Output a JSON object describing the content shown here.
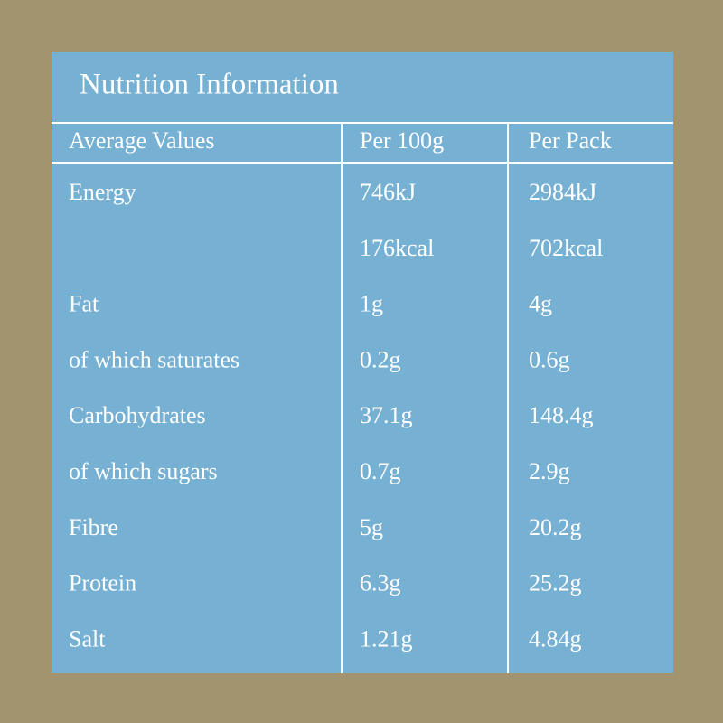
{
  "title": "Nutrition Information",
  "table": {
    "header": [
      "Average Values",
      "Per 100g",
      "Per Pack"
    ],
    "rows": [
      {
        "label": "Energy",
        "per_100g": [
          "746kJ",
          "176kcal"
        ],
        "per_pack": [
          "2984kJ",
          "702kcal"
        ]
      },
      {
        "label": "Fat",
        "per_100g": [
          "1g"
        ],
        "per_pack": [
          "4g"
        ]
      },
      {
        "label": "of which saturates",
        "per_100g": [
          "0.2g"
        ],
        "per_pack": [
          "0.6g"
        ]
      },
      {
        "label": "Carbohydrates",
        "per_100g": [
          "37.1g"
        ],
        "per_pack": [
          "148.4g"
        ]
      },
      {
        "label": "of which sugars",
        "per_100g": [
          "0.7g"
        ],
        "per_pack": [
          "2.9g"
        ]
      },
      {
        "label": "Fibre",
        "per_100g": [
          "5g"
        ],
        "per_pack": [
          "20.2g"
        ]
      },
      {
        "label": "Protein",
        "per_100g": [
          "6.3g"
        ],
        "per_pack": [
          "25.2g"
        ]
      },
      {
        "label": "Salt",
        "per_100g": [
          "1.21g"
        ],
        "per_pack": [
          "4.84g"
        ]
      }
    ]
  }
}
